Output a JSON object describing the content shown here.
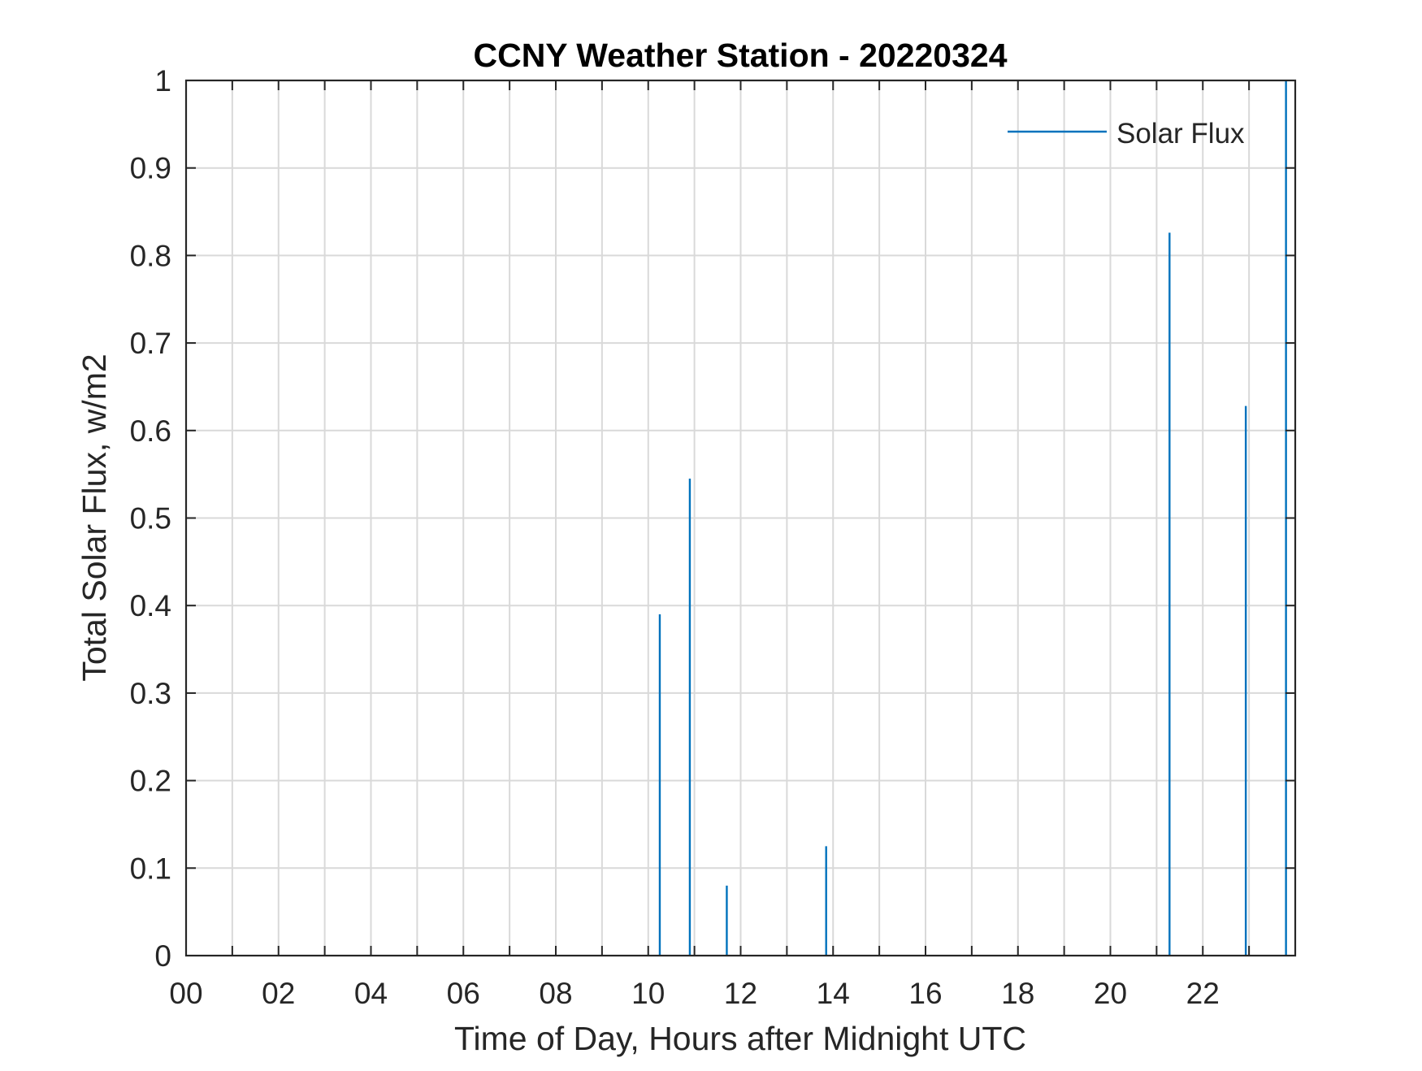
{
  "chart_data": {
    "type": "bar",
    "title": "CCNY Weather Station - 20220324",
    "xlabel": "Time of Day, Hours after Midnight UTC",
    "ylabel": "Total Solar Flux, w/m2",
    "xlim": [
      0,
      24
    ],
    "ylim": [
      0,
      1
    ],
    "grid": true,
    "x_tick_labels": [
      "00",
      "02",
      "04",
      "06",
      "08",
      "10",
      "12",
      "14",
      "16",
      "18",
      "20",
      "22"
    ],
    "x_tick_values": [
      0,
      2,
      4,
      6,
      8,
      10,
      12,
      14,
      16,
      18,
      20,
      22
    ],
    "x_minor_tick_values": [
      1,
      3,
      5,
      7,
      9,
      11,
      13,
      15,
      17,
      19,
      21,
      23
    ],
    "y_tick_labels": [
      "0",
      "0.1",
      "0.2",
      "0.3",
      "0.4",
      "0.5",
      "0.6",
      "0.7",
      "0.8",
      "0.9",
      "1"
    ],
    "y_tick_values": [
      0,
      0.1,
      0.2,
      0.3,
      0.4,
      0.5,
      0.6,
      0.7,
      0.8,
      0.9,
      1
    ],
    "legend_position": "top-right",
    "series": [
      {
        "name": "Solar Flux",
        "color": "#0072BD",
        "points": [
          {
            "x": 10.25,
            "y": 0.39
          },
          {
            "x": 10.9,
            "y": 0.545
          },
          {
            "x": 11.7,
            "y": 0.08
          },
          {
            "x": 13.85,
            "y": 0.125
          },
          {
            "x": 21.28,
            "y": 0.826
          },
          {
            "x": 22.93,
            "y": 0.628
          },
          {
            "x": 23.8,
            "y": 1.0
          }
        ]
      }
    ]
  }
}
